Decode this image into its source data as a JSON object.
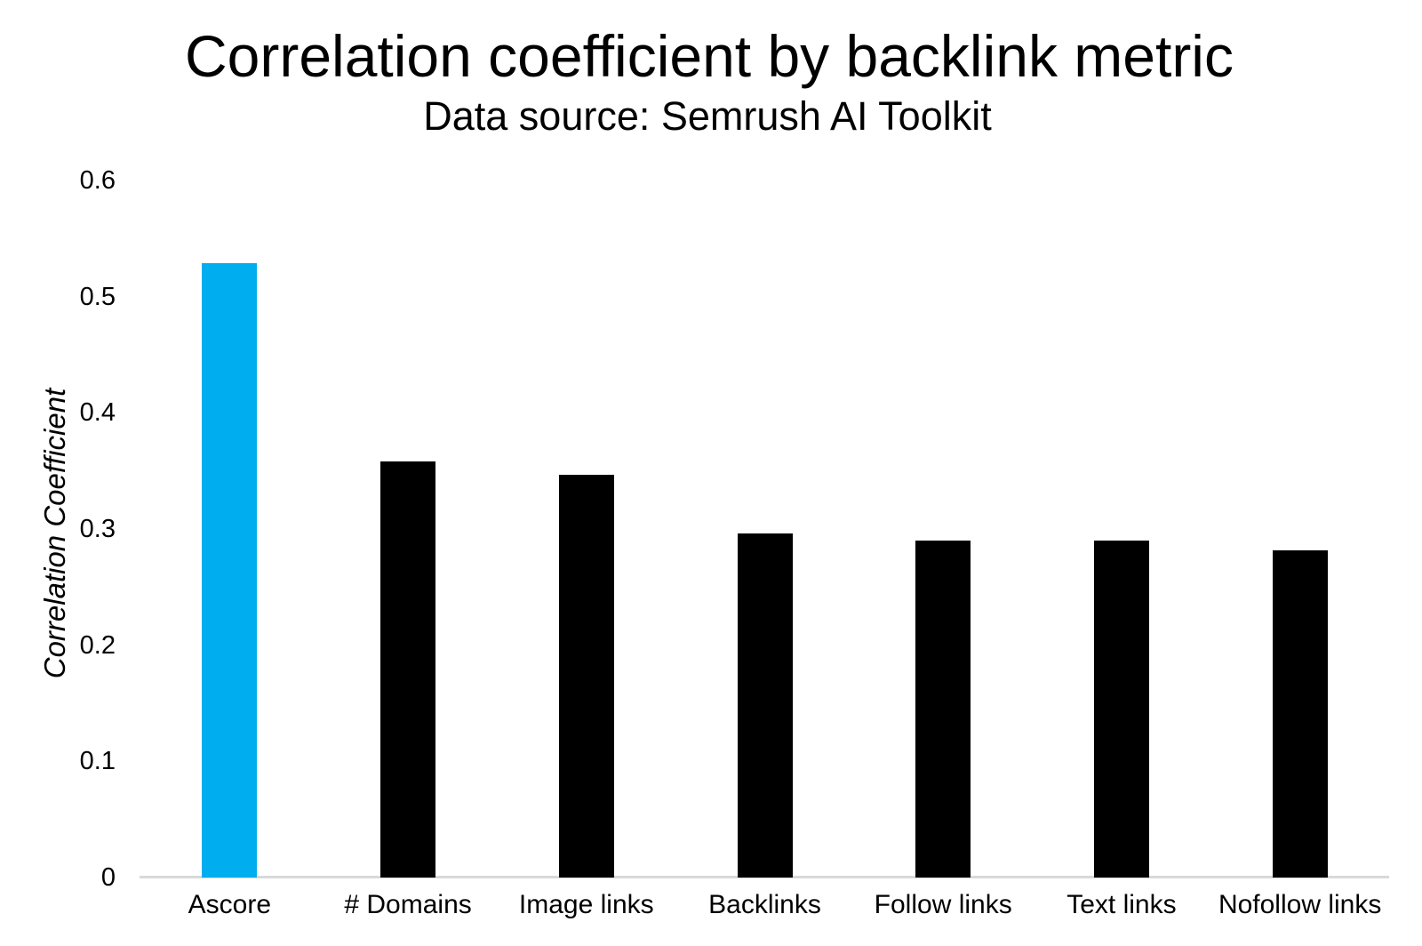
{
  "chart_data": {
    "type": "bar",
    "title": "Correlation coefficient by backlink metric",
    "subtitle": "Data source: Semrush AI Toolkit",
    "ylabel": "Correlation Coefficient",
    "xlabel": "",
    "categories": [
      "Ascore",
      "# Domains",
      "Image links",
      "Backlinks",
      "Follow links",
      "Text links",
      "Nofollow links"
    ],
    "values": [
      0.529,
      0.358,
      0.347,
      0.296,
      0.29,
      0.29,
      0.282
    ],
    "bar_colors": [
      "#00AEEF",
      "#000000",
      "#000000",
      "#000000",
      "#000000",
      "#000000",
      "#000000"
    ],
    "ylim": [
      0,
      0.6
    ],
    "ytick_labels": [
      "0",
      "0.1",
      "0.2",
      "0.3",
      "0.4",
      "0.5",
      "0.6"
    ],
    "grid": "off",
    "legend": "none",
    "colors": {
      "highlight_bar": "#00AEEF",
      "default_bar": "#000000",
      "axis_line": "#D9D9D9",
      "background": "#FFFFFF",
      "text": "#000000"
    }
  }
}
